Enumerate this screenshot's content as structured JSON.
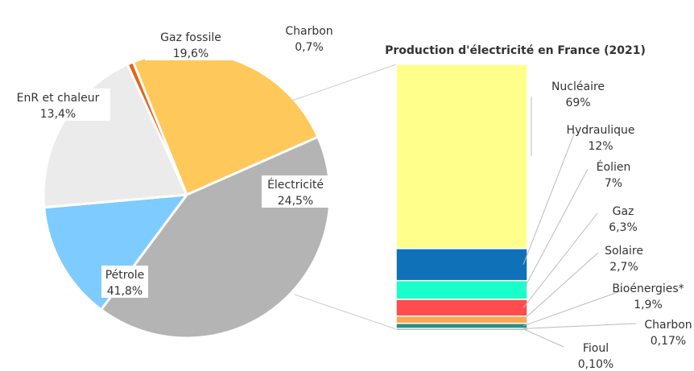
{
  "chart_data": [
    {
      "type": "pie",
      "title": "",
      "slices": [
        {
          "label": "Électricité",
          "value_label": "24,5%",
          "value": 24.5,
          "color": "#FFC85A"
        },
        {
          "label": "Pétrole",
          "value_label": "41,8%",
          "value": 41.8,
          "color": "#B4B4B4"
        },
        {
          "label": "EnR et chaleur",
          "value_label": "13,4%",
          "value": 13.4,
          "color": "#7ECBFF"
        },
        {
          "label": "Gaz fossile",
          "value_label": "19,6%",
          "value": 19.6,
          "color": "#EBEBEB"
        },
        {
          "label": "Charbon",
          "value_label": "0,7%",
          "value": 0.7,
          "color": "#E0661F"
        }
      ]
    },
    {
      "type": "bar",
      "stacked": true,
      "title": "Production d'électricité en France (2021)",
      "series": [
        {
          "name": "Nucléaire",
          "value_label": "69%",
          "value": 69,
          "color": "#FFFF8C"
        },
        {
          "name": "Hydraulique",
          "value_label": "12%",
          "value": 12,
          "color": "#0F72B8"
        },
        {
          "name": "Éolien",
          "value_label": "7%",
          "value": 7,
          "color": "#19FFCB"
        },
        {
          "name": "Gaz",
          "value_label": "6,3%",
          "value": 6.3,
          "color": "#FF4D4D"
        },
        {
          "name": "Solaire",
          "value_label": "2,7%",
          "value": 2.7,
          "color": "#FFA64D"
        },
        {
          "name": "Bioénergies*",
          "value_label": "1,9%",
          "value": 1.9,
          "color": "#2E8B8B"
        },
        {
          "name": "Charbon",
          "value_label": "0,17%",
          "value": 0.17,
          "color": "#555555"
        },
        {
          "name": "Fioul",
          "value_label": "0,10%",
          "value": 0.1,
          "color": "#99CC99"
        }
      ]
    }
  ]
}
